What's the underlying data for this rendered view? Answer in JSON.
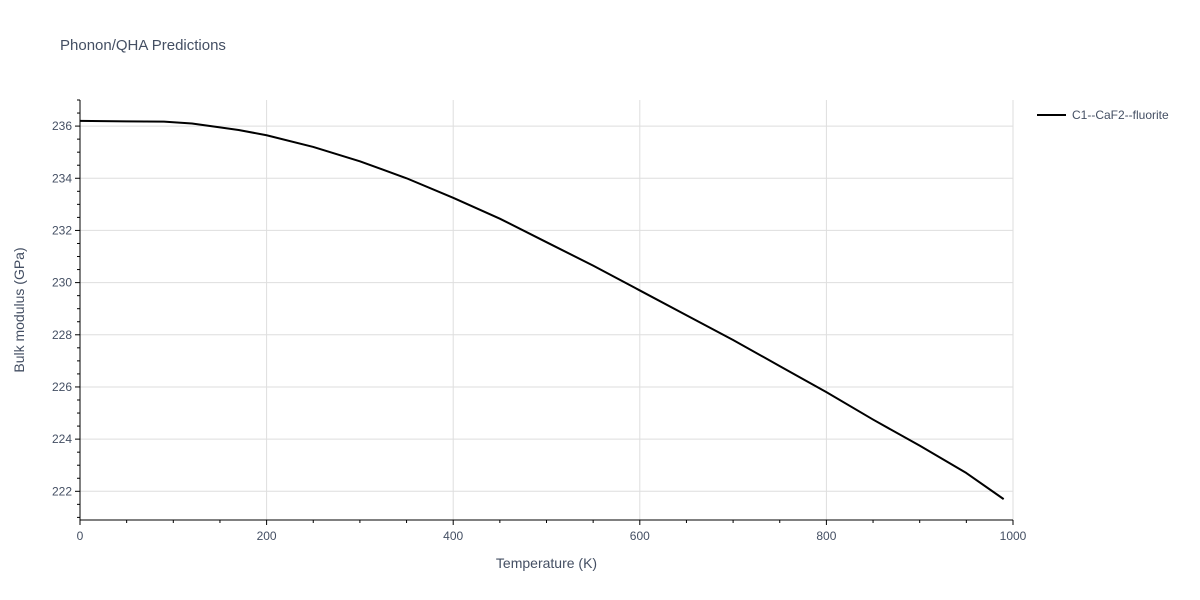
{
  "chart_data": {
    "type": "line",
    "title": "Phonon/QHA Predictions",
    "xlabel": "Temperature (K)",
    "ylabel": "Bulk modulus (GPa)",
    "xlim": [
      0,
      1000
    ],
    "ylim": [
      220.9,
      237.0
    ],
    "x_ticks": [
      0,
      200,
      400,
      600,
      800,
      1000
    ],
    "y_ticks": [
      222,
      224,
      226,
      228,
      230,
      232,
      234,
      236
    ],
    "grid": true,
    "legend_position": "top-right",
    "series": [
      {
        "name": "C1--CaF2--fluorite",
        "color": "#000000",
        "x": [
          0,
          50,
          90,
          120,
          150,
          170,
          200,
          250,
          300,
          350,
          400,
          450,
          500,
          550,
          600,
          650,
          700,
          750,
          800,
          850,
          900,
          950,
          990
        ],
        "y": [
          236.2,
          236.18,
          236.17,
          236.1,
          235.95,
          235.85,
          235.65,
          235.2,
          234.65,
          234.0,
          233.25,
          232.45,
          231.55,
          230.65,
          229.7,
          228.75,
          227.8,
          226.8,
          225.8,
          224.75,
          223.75,
          222.7,
          221.7
        ]
      }
    ]
  }
}
